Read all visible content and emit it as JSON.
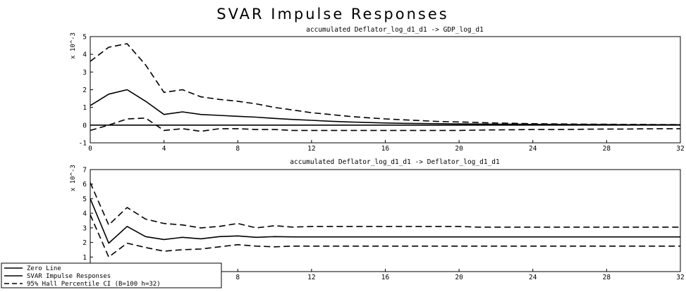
{
  "title": "SVAR Impulse Responses",
  "legend": {
    "items": [
      {
        "label": "Zero Line",
        "style": "solid"
      },
      {
        "label": "SVAR Impulse Responses",
        "style": "solid"
      },
      {
        "label": "95% Hall Percentile CI (B=100 h=32)",
        "style": "dashed"
      }
    ]
  },
  "chart_data": [
    {
      "type": "line",
      "title": "accumulated Deflator_log_d1_d1 -> GDP_log_d1",
      "ymultiplier": "x 10^-3",
      "xlim": [
        0,
        32
      ],
      "ylim": [
        -1,
        5
      ],
      "xticks": [
        0,
        4,
        8,
        12,
        16,
        20,
        24,
        28,
        32
      ],
      "yticks": [
        -1,
        0,
        1,
        2,
        3,
        4,
        5
      ],
      "x": [
        0,
        1,
        2,
        3,
        4,
        5,
        6,
        7,
        8,
        9,
        10,
        11,
        12,
        13,
        14,
        15,
        16,
        17,
        18,
        19,
        20,
        21,
        22,
        23,
        24,
        25,
        26,
        27,
        28,
        29,
        30,
        31,
        32
      ],
      "series": [
        {
          "name": "Zero Line",
          "style": "solid",
          "values": [
            0,
            0,
            0,
            0,
            0,
            0,
            0,
            0,
            0,
            0,
            0,
            0,
            0,
            0,
            0,
            0,
            0,
            0,
            0,
            0,
            0,
            0,
            0,
            0,
            0,
            0,
            0,
            0,
            0,
            0,
            0,
            0,
            0
          ]
        },
        {
          "name": "SVAR Impulse Responses",
          "style": "solid",
          "values": [
            1.1,
            1.75,
            2.0,
            1.35,
            0.6,
            0.75,
            0.6,
            0.55,
            0.5,
            0.45,
            0.38,
            0.32,
            0.27,
            0.22,
            0.18,
            0.15,
            0.12,
            0.1,
            0.09,
            0.08,
            0.07,
            0.06,
            0.05,
            0.05,
            0.04,
            0.04,
            0.03,
            0.03,
            0.03,
            0.02,
            0.02,
            0.02,
            0.02
          ]
        },
        {
          "name": "95% Hall Percentile CI upper",
          "style": "dashed",
          "values": [
            3.6,
            4.4,
            4.6,
            3.4,
            1.85,
            2.0,
            1.6,
            1.45,
            1.35,
            1.2,
            1.0,
            0.85,
            0.7,
            0.6,
            0.5,
            0.42,
            0.35,
            0.3,
            0.25,
            0.2,
            0.18,
            0.15,
            0.12,
            0.1,
            0.08,
            0.07,
            0.06,
            0.05,
            0.05,
            0.04,
            0.04,
            0.03,
            0.03
          ]
        },
        {
          "name": "95% Hall Percentile CI lower",
          "style": "dashed",
          "values": [
            -0.3,
            0.0,
            0.35,
            0.4,
            -0.3,
            -0.2,
            -0.35,
            -0.2,
            -0.2,
            -0.25,
            -0.25,
            -0.3,
            -0.3,
            -0.3,
            -0.3,
            -0.3,
            -0.3,
            -0.3,
            -0.3,
            -0.3,
            -0.3,
            -0.28,
            -0.27,
            -0.26,
            -0.25,
            -0.25,
            -0.24,
            -0.23,
            -0.22,
            -0.22,
            -0.21,
            -0.2,
            -0.2
          ]
        }
      ]
    },
    {
      "type": "line",
      "title": "accumulated Deflator_log_d1_d1 -> Deflator_log_d1_d1",
      "ymultiplier": "x 10^-3",
      "xlim": [
        0,
        32
      ],
      "ylim": [
        0,
        7
      ],
      "xticks": [
        0,
        4,
        8,
        12,
        16,
        20,
        24,
        28,
        32
      ],
      "yticks": [
        1,
        2,
        3,
        4,
        5,
        6,
        7
      ],
      "x": [
        0,
        1,
        2,
        3,
        4,
        5,
        6,
        7,
        8,
        9,
        10,
        11,
        12,
        13,
        14,
        15,
        16,
        17,
        18,
        19,
        20,
        21,
        22,
        23,
        24,
        25,
        26,
        27,
        28,
        29,
        30,
        31,
        32
      ],
      "series": [
        {
          "name": "SVAR Impulse Responses",
          "style": "solid",
          "values": [
            5.0,
            1.95,
            3.1,
            2.4,
            2.2,
            2.35,
            2.25,
            2.4,
            2.45,
            2.35,
            2.4,
            2.38,
            2.38,
            2.38,
            2.38,
            2.38,
            2.38,
            2.38,
            2.38,
            2.38,
            2.38,
            2.38,
            2.38,
            2.38,
            2.38,
            2.38,
            2.38,
            2.38,
            2.38,
            2.38,
            2.38,
            2.38,
            2.38
          ]
        },
        {
          "name": "95% Hall Percentile CI upper",
          "style": "dashed",
          "values": [
            6.1,
            3.2,
            4.4,
            3.6,
            3.3,
            3.2,
            3.0,
            3.1,
            3.3,
            3.0,
            3.15,
            3.05,
            3.1,
            3.1,
            3.1,
            3.1,
            3.1,
            3.1,
            3.1,
            3.1,
            3.1,
            3.05,
            3.05,
            3.05,
            3.05,
            3.05,
            3.05,
            3.05,
            3.05,
            3.05,
            3.05,
            3.05,
            3.05
          ]
        },
        {
          "name": "95% Hall Percentile CI lower",
          "style": "dashed",
          "values": [
            3.9,
            1.0,
            1.95,
            1.65,
            1.4,
            1.5,
            1.55,
            1.7,
            1.85,
            1.75,
            1.7,
            1.75,
            1.75,
            1.75,
            1.75,
            1.75,
            1.75,
            1.75,
            1.75,
            1.75,
            1.75,
            1.75,
            1.75,
            1.75,
            1.75,
            1.75,
            1.75,
            1.75,
            1.75,
            1.75,
            1.75,
            1.75,
            1.75
          ]
        }
      ]
    }
  ]
}
